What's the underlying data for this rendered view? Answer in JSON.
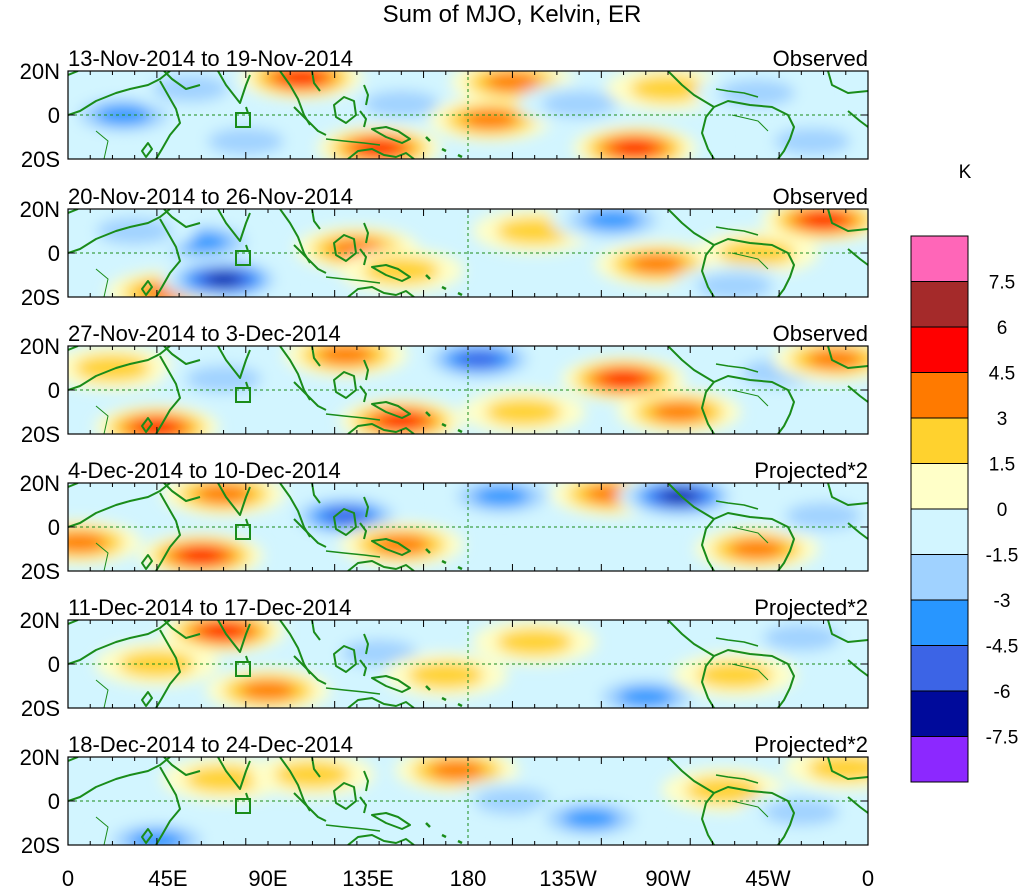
{
  "chart_data": {
    "type": "heatmap",
    "title": "Sum of MJO, Kelvin, ER",
    "units": "K",
    "x_tick_labels": [
      "0",
      "45E",
      "90E",
      "135E",
      "180",
      "135W",
      "90W",
      "45W",
      "0"
    ],
    "y_tick_labels": [
      "20N",
      "0",
      "20S"
    ],
    "x_range_deg_east": [
      0,
      360
    ],
    "y_range_deg": [
      -20,
      20
    ],
    "colorbar": {
      "labels": [
        "7.5",
        "6",
        "4.5",
        "3",
        "1.5",
        "0",
        "-1.5",
        "-3",
        "-4.5",
        "-6",
        "-7.5"
      ],
      "bins": [
        {
          "range": "> 7.5",
          "color": "#ff66b8"
        },
        {
          "range": "6 to 7.5",
          "color": "#a52a2a"
        },
        {
          "range": "4.5 to 6",
          "color": "#ff0000"
        },
        {
          "range": "3 to 4.5",
          "color": "#ff7a00"
        },
        {
          "range": "1.5 to 3",
          "color": "#ffd22e"
        },
        {
          "range": "0 to 1.5",
          "color": "#ffffc8"
        },
        {
          "range": "-1.5 to 0",
          "color": "#d2f5ff"
        },
        {
          "range": "-3 to -1.5",
          "color": "#a0d2ff"
        },
        {
          "range": "-4.5 to -3",
          "color": "#2896ff"
        },
        {
          "range": "-6 to -4.5",
          "color": "#3c64e6"
        },
        {
          "range": "-7.5 to -6",
          "color": "#000a9b"
        },
        {
          "range": "< -7.5",
          "color": "#8c28ff"
        }
      ]
    },
    "panels": [
      {
        "period": "13-Nov-2014 to 19-Nov-2014",
        "label": "Observed",
        "features": [
          {
            "lon": 25,
            "lat": 0,
            "value": -3.2
          },
          {
            "lon": 55,
            "lat": 12,
            "value": -2.5
          },
          {
            "lon": 80,
            "lat": -12,
            "value": -2.2
          },
          {
            "lon": 105,
            "lat": 17,
            "value": 4.6
          },
          {
            "lon": 140,
            "lat": -15,
            "value": 4.8
          },
          {
            "lon": 150,
            "lat": 5,
            "value": -2.5
          },
          {
            "lon": 190,
            "lat": -2,
            "value": 3.2
          },
          {
            "lon": 200,
            "lat": 15,
            "value": 4.5
          },
          {
            "lon": 230,
            "lat": 5,
            "value": -2.8
          },
          {
            "lon": 255,
            "lat": -15,
            "value": 5.0
          },
          {
            "lon": 270,
            "lat": 12,
            "value": 3.0
          },
          {
            "lon": 310,
            "lat": 10,
            "value": -2.5
          },
          {
            "lon": 335,
            "lat": -12,
            "value": -2.2
          }
        ]
      },
      {
        "period": "20-Nov-2014 to 26-Nov-2014",
        "label": "Observed",
        "features": [
          {
            "lon": 45,
            "lat": -18,
            "value": 4.2
          },
          {
            "lon": 70,
            "lat": -12,
            "value": -6.5
          },
          {
            "lon": 60,
            "lat": 5,
            "value": -3.5
          },
          {
            "lon": 30,
            "lat": 10,
            "value": -2.0
          },
          {
            "lon": 130,
            "lat": 2,
            "value": 4.5
          },
          {
            "lon": 150,
            "lat": -8,
            "value": 2.8
          },
          {
            "lon": 210,
            "lat": 10,
            "value": 2.2
          },
          {
            "lon": 245,
            "lat": 15,
            "value": -3.8
          },
          {
            "lon": 265,
            "lat": -5,
            "value": 3.2
          },
          {
            "lon": 310,
            "lat": 0,
            "value": 3.0
          },
          {
            "lon": 340,
            "lat": 15,
            "value": 4.6
          },
          {
            "lon": 300,
            "lat": -15,
            "value": -2.2
          }
        ]
      },
      {
        "period": "27-Nov-2014 to 3-Dec-2014",
        "label": "Observed",
        "features": [
          {
            "lon": 40,
            "lat": -17,
            "value": 4.6
          },
          {
            "lon": 20,
            "lat": 10,
            "value": 2.5
          },
          {
            "lon": 70,
            "lat": 5,
            "value": -3.0
          },
          {
            "lon": 125,
            "lat": 16,
            "value": 4.2
          },
          {
            "lon": 150,
            "lat": -14,
            "value": 4.8
          },
          {
            "lon": 185,
            "lat": 14,
            "value": -4.8
          },
          {
            "lon": 205,
            "lat": -10,
            "value": 3.0
          },
          {
            "lon": 250,
            "lat": 5,
            "value": 4.8
          },
          {
            "lon": 275,
            "lat": -10,
            "value": 3.2
          },
          {
            "lon": 320,
            "lat": 8,
            "value": -2.8
          },
          {
            "lon": 345,
            "lat": 14,
            "value": 4.0
          }
        ]
      },
      {
        "period": "4-Dec-2014 to 10-Dec-2014",
        "label": "Projected*2",
        "features": [
          {
            "lon": 5,
            "lat": -7,
            "value": 3.8
          },
          {
            "lon": 60,
            "lat": -13,
            "value": 4.8
          },
          {
            "lon": 70,
            "lat": 15,
            "value": 3.5
          },
          {
            "lon": 125,
            "lat": 5,
            "value": -5.0
          },
          {
            "lon": 150,
            "lat": -8,
            "value": 3.5
          },
          {
            "lon": 195,
            "lat": 14,
            "value": -3.5
          },
          {
            "lon": 245,
            "lat": 15,
            "value": 3.8
          },
          {
            "lon": 275,
            "lat": 14,
            "value": -6.2
          },
          {
            "lon": 310,
            "lat": -10,
            "value": 3.8
          },
          {
            "lon": 340,
            "lat": 5,
            "value": -2.2
          }
        ]
      },
      {
        "period": "11-Dec-2014 to 17-Dec-2014",
        "label": "Projected*2",
        "features": [
          {
            "lon": 70,
            "lat": 15,
            "value": 5.0
          },
          {
            "lon": 40,
            "lat": 0,
            "value": 2.0
          },
          {
            "lon": 90,
            "lat": -12,
            "value": 3.2
          },
          {
            "lon": 140,
            "lat": 5,
            "value": -2.0
          },
          {
            "lon": 170,
            "lat": -5,
            "value": 2.2
          },
          {
            "lon": 210,
            "lat": 10,
            "value": 2.0
          },
          {
            "lon": 260,
            "lat": -15,
            "value": -4.0
          },
          {
            "lon": 300,
            "lat": -5,
            "value": 2.5
          },
          {
            "lon": 330,
            "lat": 12,
            "value": -2.2
          }
        ]
      },
      {
        "period": "18-Dec-2014 to 24-Dec-2014",
        "label": "Projected*2",
        "features": [
          {
            "lon": 40,
            "lat": -18,
            "value": -3.5
          },
          {
            "lon": 70,
            "lat": 10,
            "value": 3.0
          },
          {
            "lon": 110,
            "lat": 12,
            "value": 3.0
          },
          {
            "lon": 175,
            "lat": 14,
            "value": 3.2
          },
          {
            "lon": 200,
            "lat": 0,
            "value": -2.0
          },
          {
            "lon": 235,
            "lat": -8,
            "value": -3.8
          },
          {
            "lon": 295,
            "lat": 5,
            "value": 2.0
          },
          {
            "lon": 330,
            "lat": -5,
            "value": -2.0
          },
          {
            "lon": 350,
            "lat": 15,
            "value": 1.8
          }
        ]
      }
    ]
  }
}
